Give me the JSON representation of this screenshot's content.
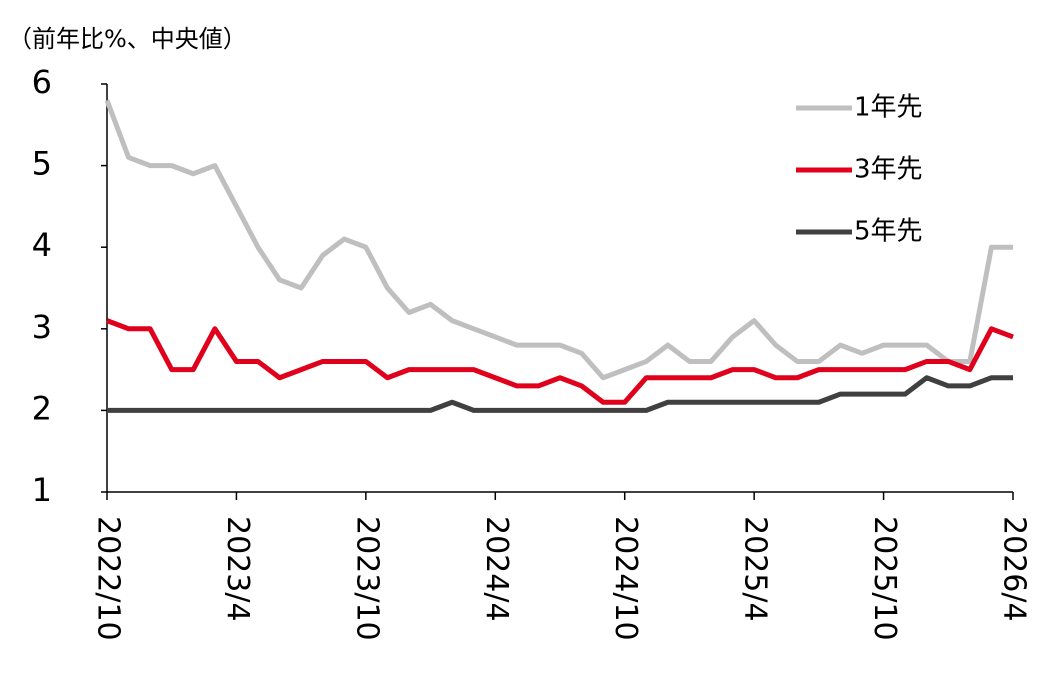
{
  "chart_data": {
    "type": "line",
    "y_label": "（前年比%、中央値）",
    "categories": [
      "2022/10",
      null,
      null,
      null,
      null,
      null,
      "2023/4",
      null,
      null,
      null,
      null,
      null,
      "2023/10",
      null,
      null,
      null,
      null,
      null,
      "2024/4",
      null,
      null,
      null,
      null,
      null,
      "2024/10",
      null,
      null,
      null,
      null,
      null,
      "2025/4",
      null,
      null,
      null,
      null,
      null,
      "2025/10",
      null,
      null,
      null,
      null,
      null,
      "2026/4"
    ],
    "series": [
      {
        "name": "1年先",
        "color": "#bfbfbf",
        "values": [
          5.8,
          5.1,
          5.0,
          5.0,
          4.9,
          5.0,
          4.5,
          4.0,
          3.6,
          3.5,
          3.9,
          4.1,
          4.0,
          3.5,
          3.2,
          3.3,
          3.1,
          3.0,
          2.9,
          2.8,
          2.8,
          2.8,
          2.7,
          2.4,
          2.5,
          2.6,
          2.8,
          2.6,
          2.6,
          2.9,
          3.1,
          2.8,
          2.6,
          2.6,
          2.8,
          2.7,
          2.8,
          2.8,
          2.8,
          2.6,
          2.6,
          4.0,
          4.0
        ]
      },
      {
        "name": "3年先",
        "color": "#e0001b",
        "values": [
          3.1,
          3.0,
          3.0,
          2.5,
          2.5,
          3.0,
          2.6,
          2.6,
          2.4,
          2.5,
          2.6,
          2.6,
          2.6,
          2.4,
          2.5,
          2.5,
          2.5,
          2.5,
          2.4,
          2.3,
          2.3,
          2.4,
          2.3,
          2.1,
          2.1,
          2.4,
          2.4,
          2.4,
          2.4,
          2.5,
          2.5,
          2.4,
          2.4,
          2.5,
          2.5,
          2.5,
          2.5,
          2.5,
          2.6,
          2.6,
          2.5,
          3.0,
          2.9
        ]
      },
      {
        "name": "5年先",
        "color": "#404040",
        "values": [
          2.0,
          2.0,
          2.0,
          2.0,
          2.0,
          2.0,
          2.0,
          2.0,
          2.0,
          2.0,
          2.0,
          2.0,
          2.0,
          2.0,
          2.0,
          2.0,
          2.1,
          2.0,
          2.0,
          2.0,
          2.0,
          2.0,
          2.0,
          2.0,
          2.0,
          2.0,
          2.1,
          2.1,
          2.1,
          2.1,
          2.1,
          2.1,
          2.1,
          2.1,
          2.2,
          2.2,
          2.2,
          2.2,
          2.4,
          2.3,
          2.3,
          2.4,
          2.4
        ]
      }
    ],
    "ylim": [
      1,
      6
    ],
    "yticks": [
      1,
      2,
      3,
      4,
      5,
      6
    ],
    "grid": false,
    "legend": "upper right"
  }
}
